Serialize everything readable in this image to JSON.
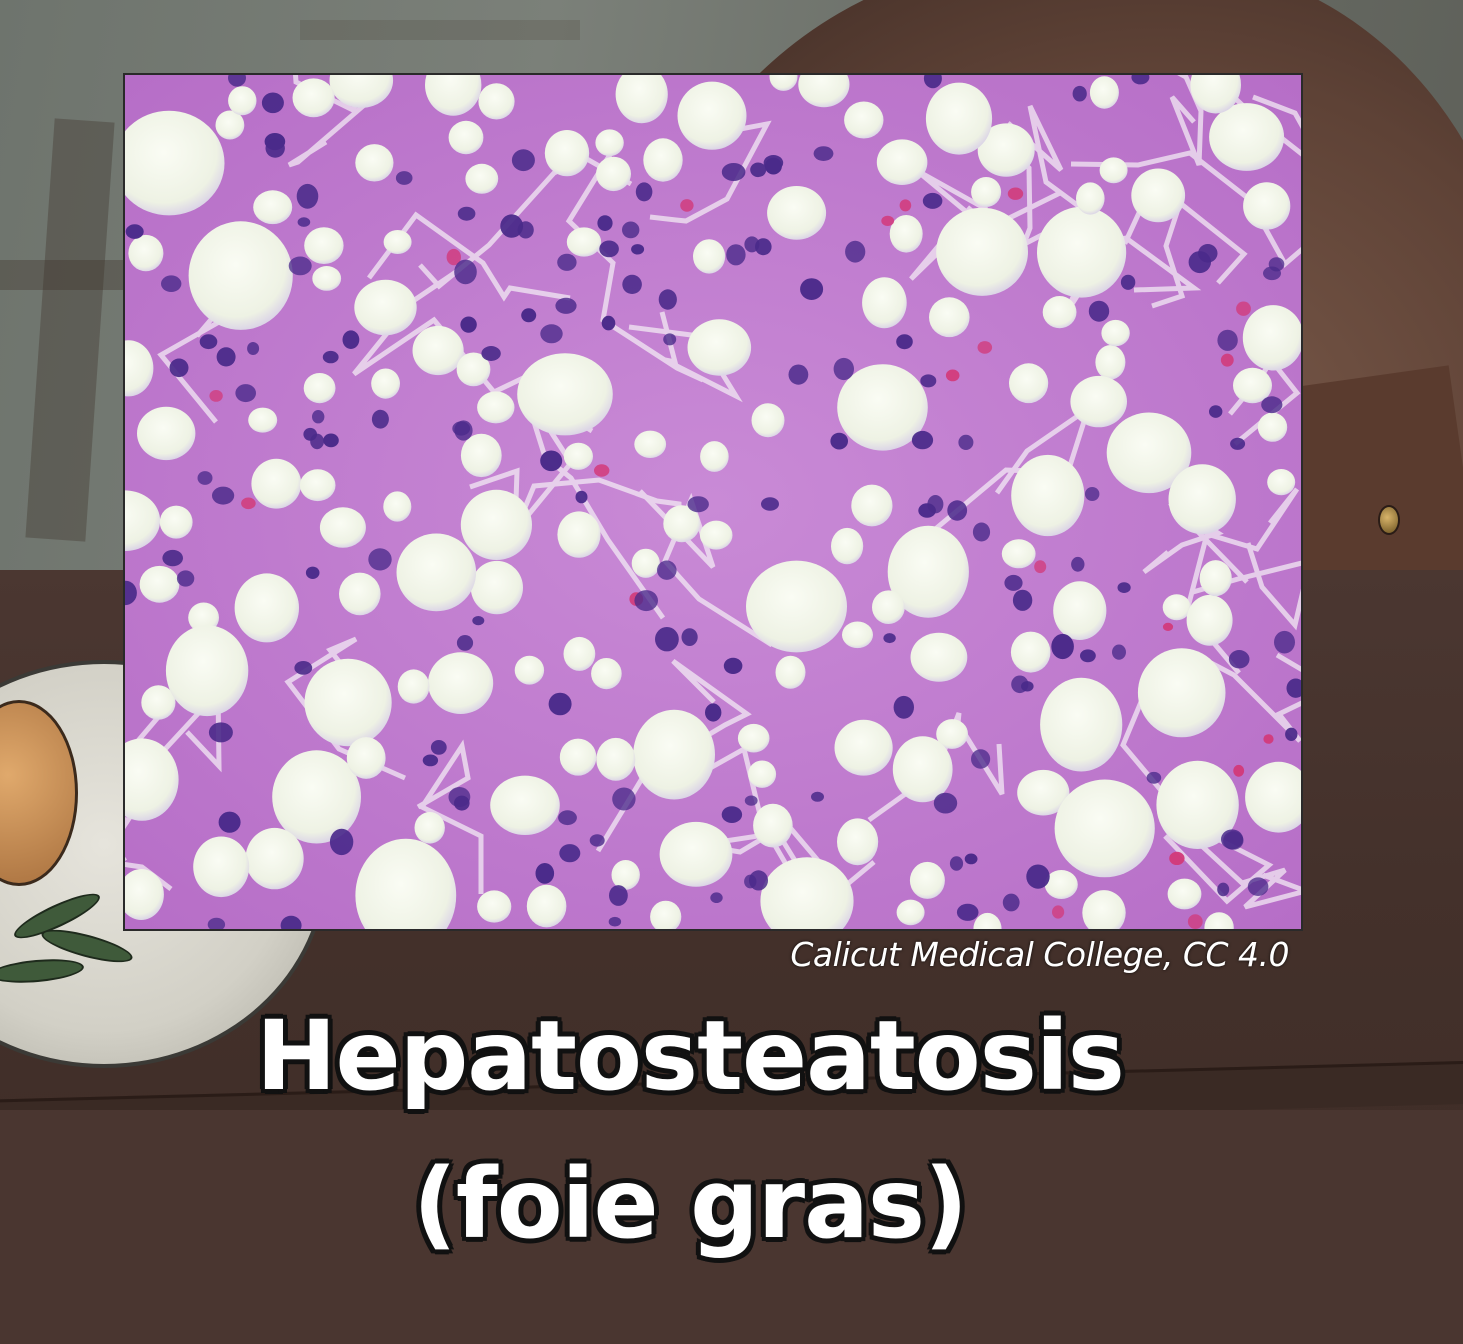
{
  "credit": "Calicut Medical College, CC 4.0",
  "caption": {
    "line1": "Hepatosteatosis",
    "line2": "(foie gras)"
  },
  "colors": {
    "tissue_pink": "#c67ad0",
    "tissue_dark": "#a85fb8",
    "fat_droplet": "#f2f5ea",
    "nucleus": "#4a2a8a",
    "rbc": "#d23a7a"
  }
}
